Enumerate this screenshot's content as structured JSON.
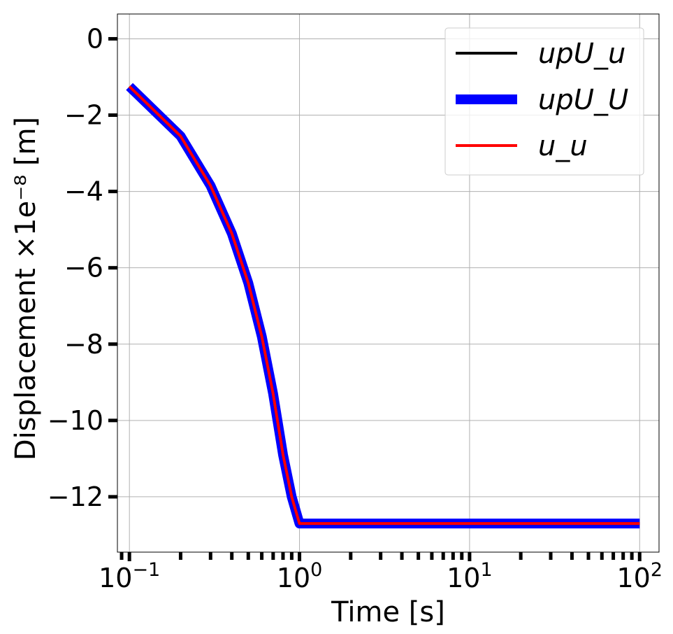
{
  "chart_data": {
    "type": "line",
    "xscale": "log",
    "xlim": [
      0.085,
      130
    ],
    "ylim": [
      -13.45,
      0.65
    ],
    "xlabel": "Time [s]",
    "ylabel": "Displacement ×1e⁻⁸ [m]",
    "yticks": [
      0,
      -2,
      -4,
      -6,
      -8,
      -10,
      -12
    ],
    "ytick_labels": [
      "0",
      "−2",
      "−4",
      "−6",
      "−8",
      "−10",
      "−12"
    ],
    "xticks": [
      {
        "value": 0.1,
        "base": "10",
        "exp": "−1"
      },
      {
        "value": 1,
        "base": "10",
        "exp": "0"
      },
      {
        "value": 10,
        "base": "10",
        "exp": "1"
      },
      {
        "value": 100,
        "base": "10",
        "exp": "2"
      }
    ],
    "grid": true,
    "legend_position": "top-right",
    "x": [
      0.1,
      0.2,
      0.3,
      0.4,
      0.5,
      0.6,
      0.7,
      0.8,
      0.9,
      1.0,
      2,
      5,
      10,
      20,
      50,
      100
    ],
    "series": [
      {
        "name": "upU_u",
        "color": "#000000",
        "style": "thin",
        "values": [
          -1.25,
          -2.55,
          -3.85,
          -5.1,
          -6.4,
          -7.8,
          -9.3,
          -10.9,
          -12.0,
          -12.7,
          -12.7,
          -12.7,
          -12.7,
          -12.7,
          -12.7,
          -12.7
        ]
      },
      {
        "name": "upU_U",
        "color": "#0000ff",
        "style": "thick",
        "values": [
          -1.25,
          -2.55,
          -3.85,
          -5.1,
          -6.4,
          -7.8,
          -9.3,
          -10.9,
          -12.0,
          -12.7,
          -12.7,
          -12.7,
          -12.7,
          -12.7,
          -12.7,
          -12.7
        ]
      },
      {
        "name": "u_u",
        "color": "#ff0000",
        "style": "thin",
        "values": [
          -1.25,
          -2.55,
          -3.85,
          -5.1,
          -6.4,
          -7.8,
          -9.3,
          -10.9,
          -12.0,
          -12.7,
          -12.7,
          -12.7,
          -12.7,
          -12.7,
          -12.7,
          -12.7
        ]
      }
    ]
  }
}
